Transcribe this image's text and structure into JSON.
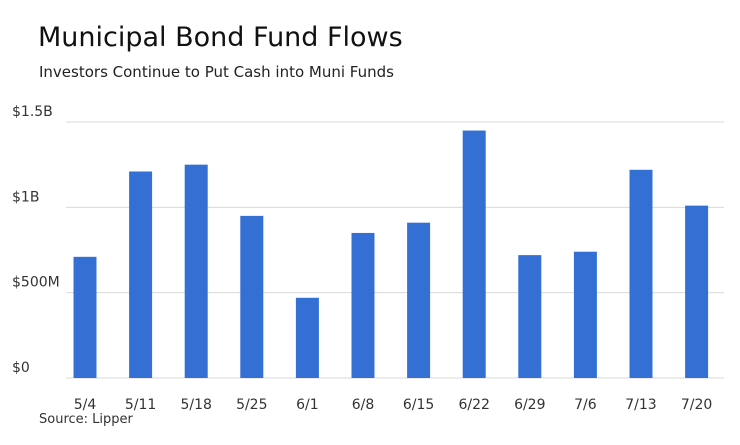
{
  "chart_data": {
    "type": "bar",
    "title": "Municipal Bond Fund Flows",
    "subtitle": "Investors Continue to Put Cash into Muni Funds",
    "source": "Source: Lipper",
    "categories": [
      "5/4",
      "5/11",
      "5/18",
      "5/25",
      "6/1",
      "6/8",
      "6/15",
      "6/22",
      "6/29",
      "7/6",
      "7/13",
      "7/20"
    ],
    "values": [
      0.71,
      1.21,
      1.25,
      0.95,
      0.47,
      0.85,
      0.91,
      1.45,
      0.72,
      0.74,
      1.22,
      1.01
    ],
    "value_unit": "billions USD",
    "ylim": [
      0,
      1.5
    ],
    "yticks": [
      0,
      0.5,
      1,
      1.5
    ],
    "ytick_labels": [
      "$0",
      "$500M",
      "$1B",
      "$1.5B"
    ],
    "grid": true,
    "bar_color": "#3470d4",
    "grid_color": "#d9d9d9"
  }
}
